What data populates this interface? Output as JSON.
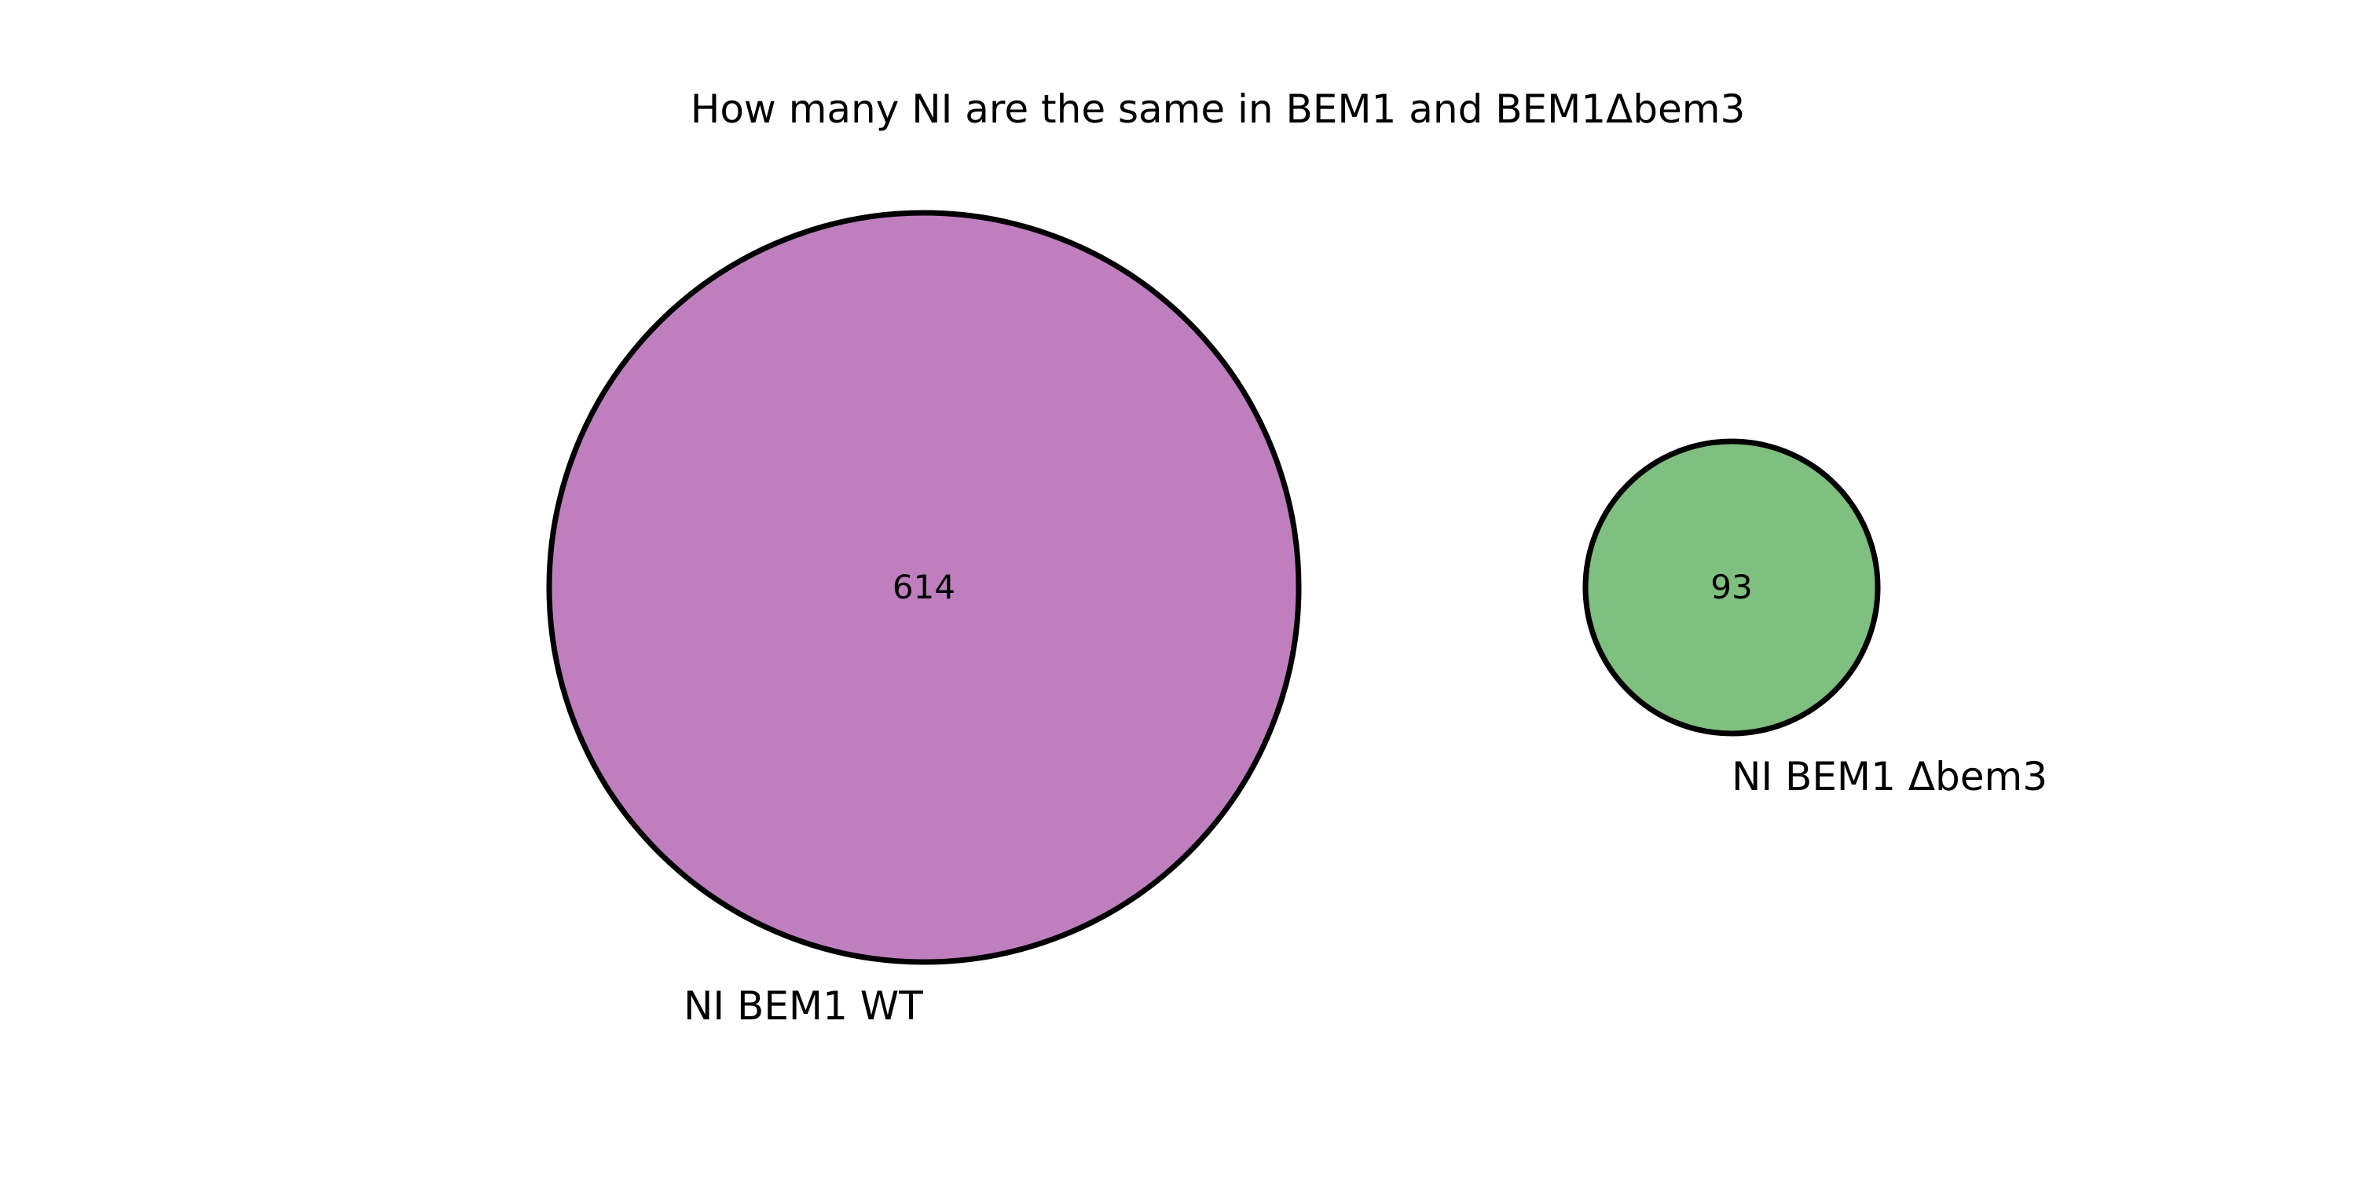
{
  "title": "How many NI are the same in BEM1 and BEM1Δbem3",
  "sets": [
    {
      "label": "NI BEM1 WT",
      "count": "614",
      "color": "#bf7fbf"
    },
    {
      "label": "NI BEM1 Δbem3",
      "count": "93",
      "color": "#7fbf7f"
    }
  ],
  "intersection_count": 0
}
